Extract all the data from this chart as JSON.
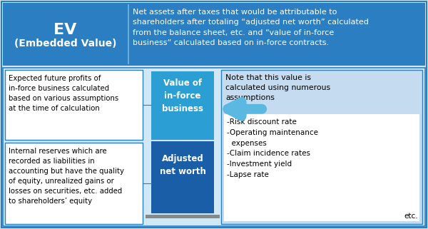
{
  "title_box_color": "#2B7EC1",
  "title_label1": "EV",
  "title_label2": "(Embedded Value)",
  "title_desc": "Net assets after taxes that would be attributable to\nshareholders after totaling “adjusted net worth” calculated\nfrom the balance sheet, etc. and “value of in-force\nbusiness” calculated based on in-force contracts.",
  "bg_color": "#D0E8F5",
  "white_box_color": "#FFFFFF",
  "bar_top_color": "#2B9FD4",
  "bar_bottom_color": "#1A5EA8",
  "note_outer_color": "#C5DCF0",
  "note_inner_color": "#FFFFFF",
  "left_box1_text": "Expected future profits of\nin-force business calculated\nbased on various assumptions\nat the time of calculation",
  "left_box2_text": "Internal reserves which are\nrecorded as liabilities in\naccounting but have the quality\nof equity, unrealized gains or\nlosses on securities, etc. added\nto shareholders’ equity",
  "bar_top_label": "Value of\nin-force\nbusiness",
  "bar_bottom_label": "Adjusted\nnet worth",
  "right_note_title": "Note that this value is\ncalculated using numerous\nassumptions",
  "right_note_items": "-Risk discount rate\n-Operating maintenance\n  expenses\n-Claim incidence rates\n-Investment yield\n-Lapse rate",
  "right_note_etc": "etc.",
  "arrow_color": "#5BB8E0",
  "border_color": "#2B7EC1",
  "divider_color": "#6AADD5",
  "baseline_color": "#888888"
}
